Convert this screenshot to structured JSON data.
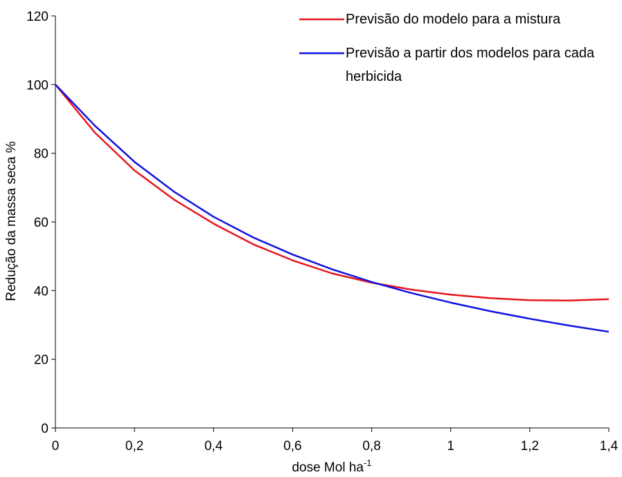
{
  "chart_data": {
    "type": "line",
    "x_label": "dose Mol ha",
    "x_label_superscript": "-1",
    "y_label": "Redução da massa seca %",
    "x": [
      0,
      0.1,
      0.2,
      0.3,
      0.4,
      0.5,
      0.6,
      0.7,
      0.8,
      0.9,
      1.0,
      1.1,
      1.2,
      1.3,
      1.4
    ],
    "series": [
      {
        "name": "Previsão do modelo para a mistura",
        "color": "#e8141c",
        "values": [
          100,
          86,
          75,
          66.5,
          59.5,
          53.5,
          48.8,
          45,
          42.3,
          40.3,
          38.8,
          37.8,
          37.2,
          37.1,
          37.5
        ]
      },
      {
        "name": "Previsão a partir dos modelos para cada herbicida",
        "color": "#1010e0",
        "values": [
          100,
          88,
          77.5,
          68.8,
          61.5,
          55.5,
          50.5,
          46.2,
          42.5,
          39.3,
          36.5,
          34,
          31.8,
          29.8,
          28
        ]
      }
    ],
    "xlim": [
      0,
      1.4
    ],
    "xticks": [
      0,
      {
        "value": 0.2,
        "label": "0,2"
      },
      {
        "value": 0.4,
        "label": "0,4"
      },
      {
        "value": 0.6,
        "label": "0,6"
      },
      {
        "value": 0.8,
        "label": "0,8"
      },
      1,
      {
        "value": 1.2,
        "label": "1,2"
      },
      {
        "value": 1.4,
        "label": "1,4"
      }
    ],
    "ylim": [
      0,
      120
    ],
    "yticks": [
      0,
      20,
      40,
      60,
      80,
      100,
      120
    ],
    "grid": false,
    "legend": "top-right"
  }
}
